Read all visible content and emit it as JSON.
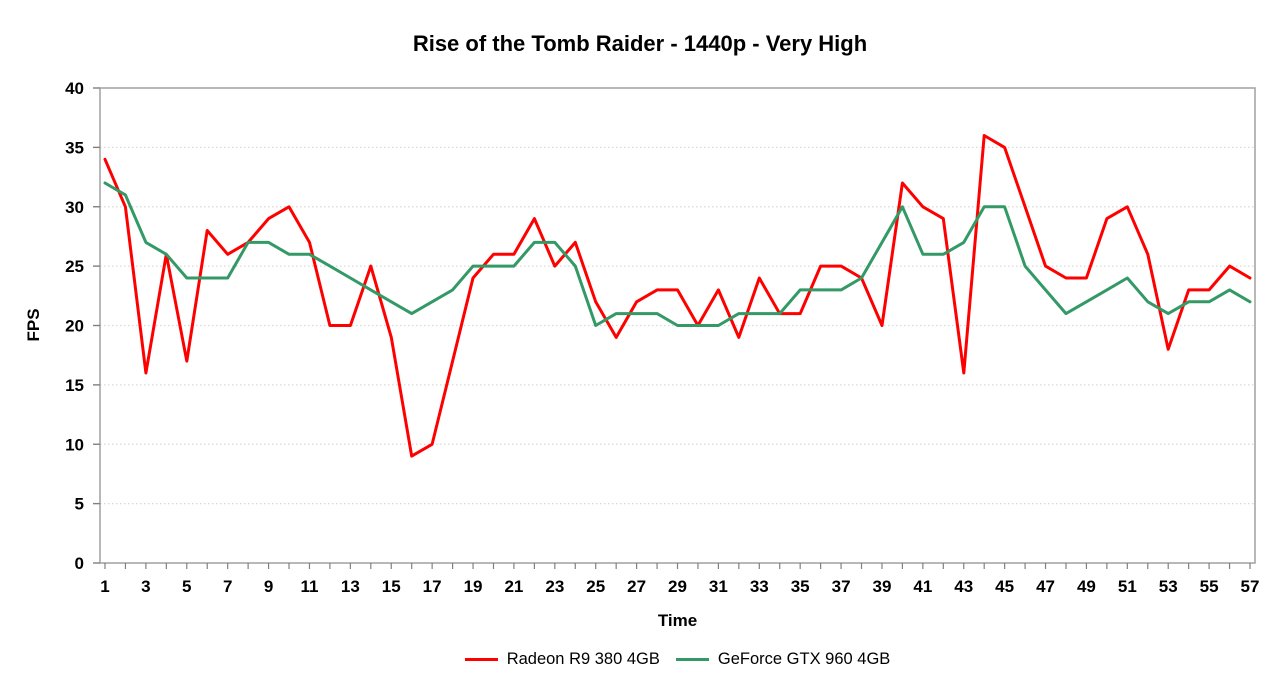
{
  "title": "Rise of the Tomb Raider - 1440p - Very High",
  "colors": {
    "background": "#FFFFFF",
    "plot_border": "#A6A6A6",
    "gridline": "#D9D9D9",
    "tick": "#808080",
    "text": "#000000"
  },
  "legend": {
    "position": "bottom-center",
    "items": [
      "Radeon R9 380 4GB",
      "GeForce GTX 960 4GB"
    ]
  },
  "chart_data": {
    "type": "line",
    "title": "Rise of the Tomb Raider - 1440p - Very High",
    "xlabel": "Time",
    "ylabel": "FPS",
    "ylim": [
      0,
      40
    ],
    "ytick_step": 5,
    "x_start": 1,
    "x_end": 57,
    "xtick_label_values": [
      1,
      3,
      5,
      7,
      9,
      11,
      13,
      15,
      17,
      19,
      21,
      23,
      25,
      27,
      29,
      31,
      33,
      35,
      37,
      39,
      41,
      43,
      45,
      47,
      49,
      51,
      53,
      55,
      57
    ],
    "grid": "horizontal-dotted",
    "legend_position": "bottom-center",
    "x": [
      1,
      2,
      3,
      4,
      5,
      6,
      7,
      8,
      9,
      10,
      11,
      12,
      13,
      14,
      15,
      16,
      17,
      18,
      19,
      20,
      21,
      22,
      23,
      24,
      25,
      26,
      27,
      28,
      29,
      30,
      31,
      32,
      33,
      34,
      35,
      36,
      37,
      38,
      39,
      40,
      41,
      42,
      43,
      44,
      45,
      46,
      47,
      48,
      49,
      50,
      51,
      52,
      53,
      54,
      55,
      56,
      57
    ],
    "series": [
      {
        "name": "Radeon R9 380 4GB",
        "color": "#FF0000",
        "values": [
          34,
          30,
          16,
          26,
          17,
          28,
          26,
          27,
          29,
          30,
          27,
          20,
          20,
          25,
          19,
          9,
          10,
          17,
          24,
          26,
          26,
          29,
          25,
          27,
          22,
          19,
          22,
          23,
          23,
          20,
          23,
          19,
          24,
          21,
          21,
          25,
          25,
          24,
          20,
          32,
          30,
          29,
          16,
          36,
          35,
          30,
          25,
          24,
          24,
          29,
          30,
          26,
          18,
          23,
          23,
          25,
          24
        ]
      },
      {
        "name": "GeForce GTX 960 4GB",
        "color": "#339966",
        "values": [
          32,
          31,
          27,
          26,
          24,
          24,
          24,
          27,
          27,
          26,
          26,
          25,
          24,
          23,
          22,
          21,
          22,
          23,
          25,
          25,
          25,
          27,
          27,
          25,
          20,
          21,
          21,
          21,
          20,
          20,
          20,
          21,
          21,
          21,
          23,
          23,
          23,
          24,
          27,
          30,
          26,
          26,
          27,
          30,
          30,
          25,
          23,
          21,
          22,
          23,
          24,
          22,
          21,
          22,
          22,
          23,
          22
        ]
      }
    ]
  }
}
